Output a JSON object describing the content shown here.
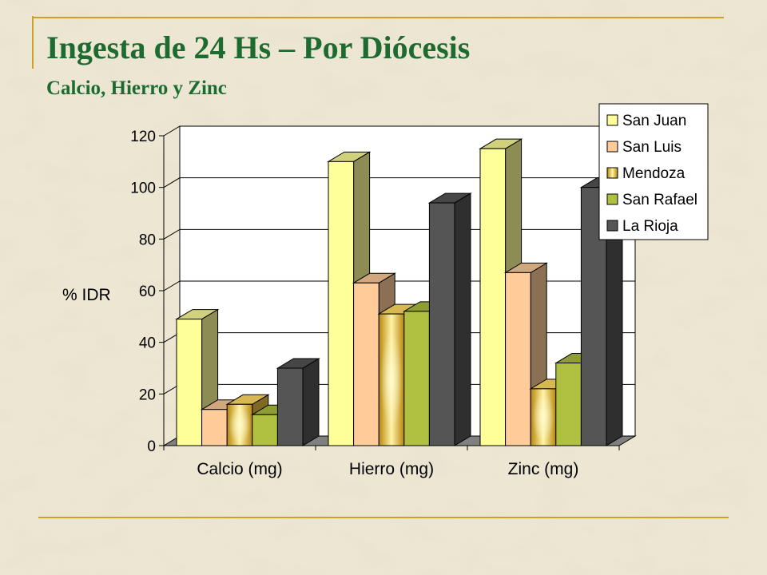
{
  "slide": {
    "title": "Ingesta de 24 Hs – Por Diócesis",
    "subtitle": "Calcio, Hierro y Zinc"
  },
  "chart_data": {
    "type": "bar",
    "title": "",
    "xlabel": "",
    "ylabel": "% IDR",
    "categories": [
      "Calcio (mg)",
      "Hierro (mg)",
      "Zinc (mg)"
    ],
    "ylim": [
      0,
      120
    ],
    "yticks": [
      0,
      20,
      40,
      60,
      80,
      100,
      120
    ],
    "grid": true,
    "legend_position": "top-right",
    "series": [
      {
        "name": "San Juan",
        "values": [
          49,
          110,
          115
        ],
        "color": "#ffff99"
      },
      {
        "name": "San Luis",
        "values": [
          14,
          63,
          67
        ],
        "color": "#ffcc99"
      },
      {
        "name": "Mendoza",
        "values": [
          16,
          51,
          22
        ],
        "color": "#e8c040"
      },
      {
        "name": "San Rafael",
        "values": [
          12,
          52,
          32
        ],
        "color": "#b0c040"
      },
      {
        "name": "La Rioja",
        "values": [
          30,
          94,
          100
        ],
        "color": "#555555"
      }
    ]
  }
}
